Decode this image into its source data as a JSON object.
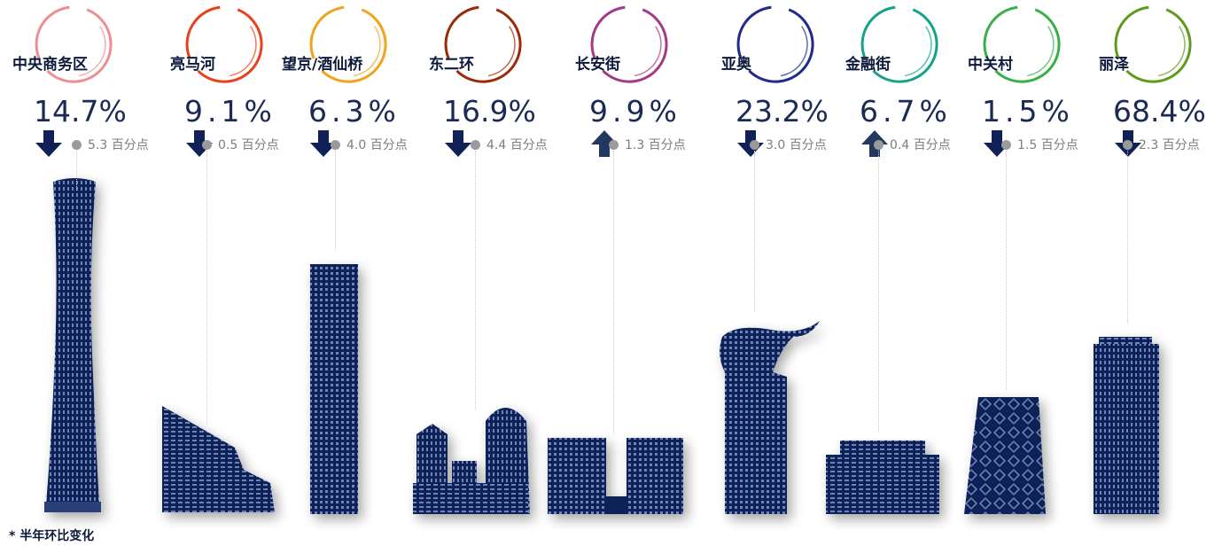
{
  "chart_data": {
    "type": "bar",
    "title": "",
    "categories": [
      "中央商务区",
      "亮马河",
      "望京/酒仙桥",
      "东二环",
      "长安街",
      "亚奥",
      "金融街",
      "中关村",
      "丽泽"
    ],
    "series": [
      {
        "values": [
          14.7,
          9.1,
          6.3,
          16.9,
          9.9,
          23.2,
          6.7,
          1.5,
          68.4
        ]
      }
    ],
    "value_labels": [
      "14.7%",
      "9.1%",
      "6.3%",
      "16.9%",
      "9.9%",
      "23.2%",
      "6.7%",
      "1.5%",
      "68.4%"
    ],
    "change_values": [
      5.3,
      0.5,
      4.0,
      4.4,
      1.3,
      3.0,
      0.4,
      1.5,
      2.3
    ],
    "change_direction": [
      "down",
      "down",
      "down",
      "down",
      "up",
      "down",
      "up",
      "down",
      "down"
    ],
    "change_labels": [
      "5.3 百分点",
      "0.5 百分点",
      "4.0 百分点",
      "4.4 百分点",
      "1.3 百分点",
      "3.0 百分点",
      "0.4 百分点",
      "1.5 百分点",
      "2.3 百分点"
    ],
    "ring_colors": [
      "#ee8e93",
      "#e8401c",
      "#f2a31c",
      "#9a2b06",
      "#a23a8a",
      "#1f2a8a",
      "#14a38a",
      "#37b04a",
      "#5e9a1c"
    ],
    "building_color": "#0f2157",
    "footnote": "* 半年环比变化"
  }
}
